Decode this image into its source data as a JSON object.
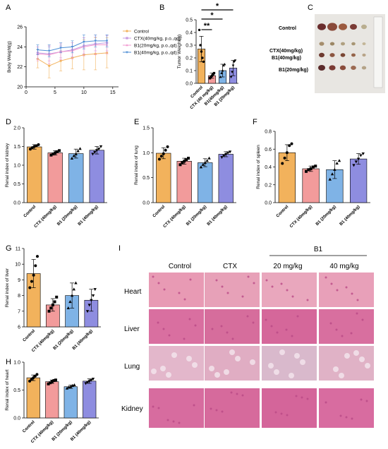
{
  "colors": {
    "control": "#f2b25c",
    "ctx": "#f29b9b",
    "b1_20": "#7fb3e6",
    "b1_40": "#8e8de0",
    "line_control": "#f2b25c",
    "line_ctx": "#c79be0",
    "line_b1_20": "#f29ad0",
    "line_b1_40": "#4f8fd6"
  },
  "panels": {
    "A": "A",
    "B": "B",
    "C": "C",
    "D": "D",
    "E": "E",
    "F": "F",
    "G": "G",
    "H": "H",
    "I": "I"
  },
  "histology": {
    "group_header": "B1",
    "columns": [
      "Control",
      "CTX",
      "20 mg/kg",
      "40 mg/kg"
    ],
    "rows": [
      "Heart",
      "Liver",
      "Lung",
      "Kidney"
    ]
  },
  "tumor_photo": {
    "rows": [
      "Control",
      "CTX(40mg/kg)",
      "B1(40mg/kg)",
      "B1(20mg/kg)"
    ]
  },
  "chart_data": [
    {
      "id": "A",
      "type": "line",
      "ylabel": "Body Weight(g)",
      "xlabel": "",
      "xlim": [
        0,
        16
      ],
      "ylim": [
        20,
        26
      ],
      "xticks": [
        "0",
        "5",
        "10",
        "15"
      ],
      "yticks": [
        "20",
        "22",
        "24",
        "26"
      ],
      "x": [
        2,
        4,
        6,
        8,
        10,
        12,
        14
      ],
      "legend": "top-right",
      "series": [
        {
          "name": "Control",
          "values": [
            22.8,
            22.1,
            22.6,
            22.9,
            23.2,
            23.3,
            23.4
          ],
          "err": [
            0.9,
            1.2,
            1.0,
            1.1,
            1.5,
            1.6,
            1.5
          ]
        },
        {
          "name": "CTX(40mg/kg, p.o.,qd)",
          "values": [
            23.4,
            23.3,
            23.5,
            23.7,
            24.1,
            24.3,
            24.4
          ],
          "err": [
            0.6,
            0.7,
            0.6,
            0.7,
            0.8,
            0.7,
            0.8
          ]
        },
        {
          "name": "B1(20mg/kg, p.o.,qd)",
          "values": [
            23.3,
            23.2,
            23.5,
            23.6,
            24.0,
            24.2,
            24.2
          ],
          "err": [
            0.7,
            0.9,
            0.8,
            0.8,
            0.9,
            1.0,
            0.9
          ]
        },
        {
          "name": "B1(40mg/kg, p.o.,qd)",
          "values": [
            23.7,
            23.6,
            23.9,
            24.0,
            24.5,
            24.6,
            24.6
          ],
          "err": [
            0.5,
            0.6,
            0.5,
            0.6,
            0.7,
            0.6,
            0.6
          ]
        }
      ]
    },
    {
      "id": "B",
      "type": "bar",
      "ylabel": "Tumor Weight(g)",
      "ylim": [
        0,
        0.5
      ],
      "yticks": [
        "0.0",
        "0.1",
        "0.2",
        "0.3",
        "0.4",
        "0.5"
      ],
      "categories": [
        "Control",
        "CTX (40 mg/kg)",
        "B1(40mg/kg)",
        "B1 (20mg/kg)"
      ],
      "values": [
        0.27,
        0.06,
        0.1,
        0.12
      ],
      "err": [
        0.1,
        0.02,
        0.05,
        0.06
      ],
      "points": [
        [
          0.42,
          0.3,
          0.25,
          0.2,
          0.17
        ],
        [
          0.04,
          0.05,
          0.06,
          0.07,
          0.08
        ],
        [
          0.05,
          0.08,
          0.1,
          0.14,
          0.15
        ],
        [
          0.05,
          0.09,
          0.14,
          0.17,
          0.18
        ]
      ],
      "significance": [
        {
          "from": 0,
          "to": 1,
          "label": "**"
        },
        {
          "from": 0,
          "to": 2,
          "label": "*"
        },
        {
          "from": 0,
          "to": 3,
          "label": "*"
        }
      ]
    },
    {
      "id": "D",
      "type": "bar",
      "ylabel": "Renal index of kidney",
      "ylim": [
        0,
        2.0
      ],
      "yticks": [
        "0.0",
        "0.5",
        "1.0",
        "1.5",
        "2.0"
      ],
      "categories": [
        "Control",
        "CTX (40mg/kg)",
        "B1 (20mg/kg)",
        "B1 (40mg/kg)"
      ],
      "values": [
        1.49,
        1.33,
        1.31,
        1.4
      ],
      "err": [
        0.06,
        0.06,
        0.12,
        0.1
      ],
      "points": [
        [
          1.43,
          1.47,
          1.5,
          1.52,
          1.55
        ],
        [
          1.27,
          1.3,
          1.33,
          1.36,
          1.39
        ],
        [
          1.18,
          1.25,
          1.3,
          1.38,
          1.44
        ],
        [
          1.3,
          1.35,
          1.4,
          1.44,
          1.5
        ]
      ]
    },
    {
      "id": "E",
      "type": "bar",
      "ylabel": "Renal index of lung",
      "ylim": [
        0,
        1.5
      ],
      "yticks": [
        "0.0",
        "0.5",
        "1.0",
        "1.5"
      ],
      "categories": [
        "Control",
        "CTX (40mg/kg)",
        "B1 (20mg/kg)",
        "B1 (40mg/kg)"
      ],
      "values": [
        0.99,
        0.83,
        0.8,
        0.97
      ],
      "err": [
        0.11,
        0.06,
        0.08,
        0.05
      ],
      "points": [
        [
          0.87,
          0.93,
          0.98,
          1.05,
          1.12
        ],
        [
          0.76,
          0.8,
          0.83,
          0.86,
          0.89
        ],
        [
          0.71,
          0.76,
          0.8,
          0.84,
          0.89
        ],
        [
          0.91,
          0.94,
          0.97,
          1.0,
          1.02
        ]
      ]
    },
    {
      "id": "F",
      "type": "bar",
      "ylabel": "Renal index of spleen",
      "ylim": [
        0,
        0.8
      ],
      "yticks": [
        "0.0",
        "0.2",
        "0.4",
        "0.6",
        "0.8"
      ],
      "categories": [
        "Control",
        "CTX (40mg/kg)",
        "B1 (20mg/kg)",
        "B1 (40mg/kg)"
      ],
      "values": [
        0.56,
        0.38,
        0.37,
        0.49
      ],
      "err": [
        0.09,
        0.03,
        0.1,
        0.06
      ],
      "points": [
        [
          0.44,
          0.5,
          0.56,
          0.64,
          0.66
        ],
        [
          0.35,
          0.37,
          0.38,
          0.4,
          0.41
        ],
        [
          0.26,
          0.32,
          0.37,
          0.44,
          0.47
        ],
        [
          0.42,
          0.46,
          0.49,
          0.53,
          0.55
        ]
      ]
    },
    {
      "id": "G",
      "type": "bar",
      "ylabel": "Renal index of liver",
      "ylim": [
        6,
        11
      ],
      "yticks": [
        "6",
        "7",
        "8",
        "9",
        "10",
        "11"
      ],
      "categories": [
        "Control",
        "CTX (40mg/kg)",
        "B1 (20mg/kg)",
        "B1 (40mg/kg)"
      ],
      "values": [
        9.4,
        7.4,
        8.0,
        7.7
      ],
      "err": [
        0.9,
        0.4,
        0.8,
        0.7
      ],
      "points": [
        [
          8.5,
          8.9,
          9.3,
          9.9,
          10.5
        ],
        [
          7.0,
          7.2,
          7.4,
          7.6,
          7.9
        ],
        [
          7.2,
          7.6,
          8.0,
          8.4,
          8.8
        ],
        [
          7.0,
          7.4,
          7.7,
          8.0,
          8.4
        ]
      ]
    },
    {
      "id": "H",
      "type": "bar",
      "ylabel": "Renal index of heart",
      "ylim": [
        0,
        1.0
      ],
      "yticks": [
        "0.0",
        "0.5",
        "1.0"
      ],
      "categories": [
        "Control",
        "CTX (40mg/kg)",
        "B1 (20mg/kg)",
        "B1 (40mg/kg)"
      ],
      "values": [
        0.72,
        0.65,
        0.56,
        0.66
      ],
      "err": [
        0.05,
        0.03,
        0.03,
        0.04
      ],
      "points": [
        [
          0.66,
          0.69,
          0.72,
          0.75,
          0.78
        ],
        [
          0.61,
          0.63,
          0.65,
          0.67,
          0.68
        ],
        [
          0.53,
          0.55,
          0.56,
          0.58,
          0.59
        ],
        [
          0.62,
          0.64,
          0.66,
          0.68,
          0.7
        ]
      ]
    }
  ]
}
